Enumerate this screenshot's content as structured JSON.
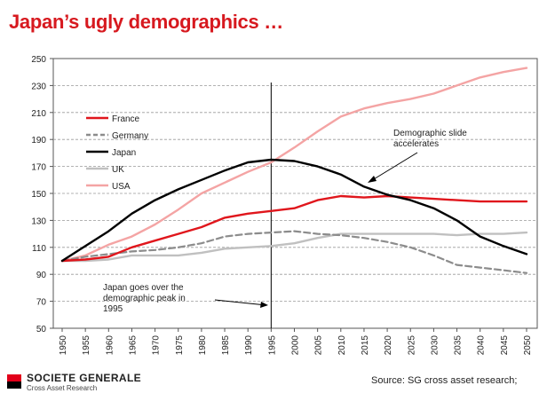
{
  "title": "Japan’s ugly demographics …",
  "footer": {
    "brand": "SOCIETE GENERALE",
    "brand_sub": "Cross Asset Research",
    "source": "Source: SG cross asset research;"
  },
  "chart_data": {
    "type": "line",
    "title": "",
    "xlabel": "",
    "ylabel": "",
    "x": [
      1950,
      1955,
      1960,
      1965,
      1970,
      1975,
      1980,
      1985,
      1990,
      1995,
      2000,
      2005,
      2010,
      2015,
      2020,
      2025,
      2030,
      2035,
      2040,
      2045,
      2050
    ],
    "ylim": [
      50,
      250
    ],
    "yticks": [
      50,
      70,
      90,
      110,
      130,
      150,
      170,
      190,
      210,
      230,
      250
    ],
    "grid": "horizontal dashed",
    "legend_position": "upper-left",
    "series": [
      {
        "name": "France",
        "color": "#e0161c",
        "dash": "solid",
        "values": [
          100,
          101,
          103,
          110,
          115,
          120,
          125,
          132,
          135,
          137,
          139,
          145,
          148,
          147,
          148,
          147,
          146,
          145,
          144,
          144,
          144
        ]
      },
      {
        "name": "Germany",
        "color": "#8c8c8c",
        "dash": "dashed",
        "values": [
          100,
          103,
          105,
          107,
          108,
          110,
          113,
          118,
          120,
          121,
          122,
          120,
          119,
          117,
          114,
          110,
          104,
          97,
          95,
          93,
          91
        ]
      },
      {
        "name": "Japan",
        "color": "#000000",
        "dash": "solid",
        "values": [
          100,
          111,
          122,
          135,
          145,
          153,
          160,
          167,
          173,
          175,
          174,
          170,
          164,
          155,
          149,
          145,
          139,
          130,
          118,
          111,
          105
        ]
      },
      {
        "name": "UK",
        "color": "#c0c0c0",
        "dash": "solid",
        "values": [
          100,
          100,
          101,
          104,
          104,
          104,
          106,
          109,
          110,
          111,
          113,
          117,
          120,
          120,
          120,
          120,
          120,
          119,
          120,
          120,
          121
        ]
      },
      {
        "name": "USA",
        "color": "#f4a4a4",
        "dash": "solid",
        "values": [
          100,
          104,
          112,
          118,
          127,
          138,
          150,
          158,
          166,
          173,
          184,
          196,
          207,
          213,
          217,
          220,
          224,
          230,
          236,
          240,
          243
        ]
      }
    ],
    "vertical_marker": 1995,
    "annotations": [
      {
        "text": "Demographic slide accelerates",
        "lines": [
          "Demographic slide",
          "accelerates"
        ]
      },
      {
        "text": "Japan goes over the demographic peak in 1995",
        "lines": [
          "Japan goes over the",
          "demographic peak in",
          "1995"
        ]
      }
    ]
  }
}
